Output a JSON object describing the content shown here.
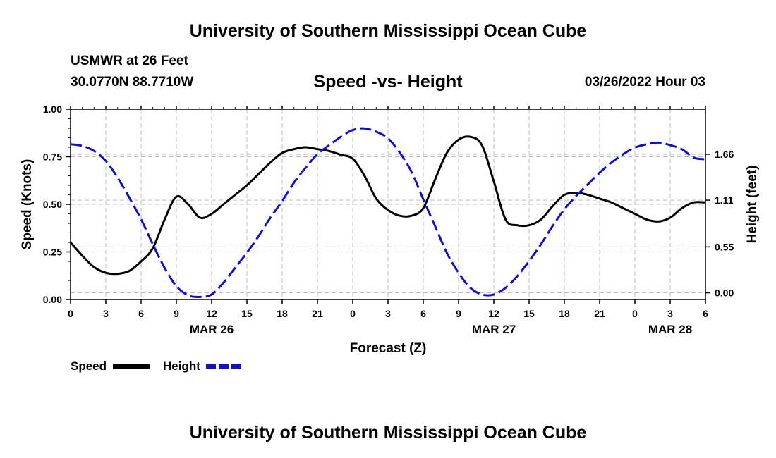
{
  "header": {
    "title": "University of Southern Mississippi Ocean Cube",
    "station": "USMWR at 26 Feet",
    "coords": "30.0770N  88.7710W",
    "datetime": "03/26/2022 Hour 03",
    "footer_title": "University of Southern Mississippi Ocean Cube"
  },
  "legend": {
    "speed_label": "Speed",
    "height_label": "Height"
  },
  "colors": {
    "speed": "#000000",
    "height": "#1010c8",
    "grid": "#bdbdbd"
  },
  "chart_data": {
    "type": "line",
    "title": "Speed -vs- Height",
    "xlabel": "Forecast (Z)",
    "ylabel": "Speed (Knots)",
    "y2label": "Height (feet)",
    "xlim": [
      0,
      54
    ],
    "ylim": [
      0,
      1
    ],
    "y2lim": [
      -0.08,
      2.2
    ],
    "x_ticks": [
      0,
      3,
      6,
      9,
      12,
      15,
      18,
      21,
      24,
      27,
      30,
      33,
      36,
      39,
      42,
      45,
      48,
      51,
      54
    ],
    "x_tick_labels": [
      "0",
      "3",
      "6",
      "9",
      "12",
      "15",
      "18",
      "21",
      "0",
      "3",
      "6",
      "9",
      "12",
      "15",
      "18",
      "21",
      "0",
      "3",
      "6"
    ],
    "date_labels": [
      {
        "x": 12,
        "label": "MAR 26"
      },
      {
        "x": 36,
        "label": "MAR 27"
      },
      {
        "x": 51,
        "label": "MAR 28"
      }
    ],
    "y_ticks": [
      0,
      0.25,
      0.5,
      0.75,
      1.0
    ],
    "y_tick_labels": [
      "0.00",
      "0.25",
      "0.50",
      "0.75",
      "1.00"
    ],
    "y2_ticks": [
      0,
      0.55,
      1.11,
      1.66
    ],
    "y2_tick_labels": [
      "0.00",
      "0.55",
      "1.11",
      "1.66"
    ],
    "series": [
      {
        "name": "Speed",
        "axis": "left",
        "style": "solid",
        "x": [
          0,
          1,
          2,
          3,
          4,
          5,
          6,
          7,
          8,
          9,
          10,
          11,
          12,
          13,
          14,
          15,
          16,
          17,
          18,
          19,
          20,
          21,
          22,
          23,
          24,
          25,
          26,
          27,
          28,
          29,
          30,
          31,
          32,
          33,
          34,
          35,
          36,
          37,
          38,
          39,
          40,
          41,
          42,
          43,
          44,
          45,
          46,
          47,
          48,
          49,
          50,
          51,
          52,
          53,
          54
        ],
        "values": [
          0.3,
          0.23,
          0.17,
          0.14,
          0.135,
          0.15,
          0.2,
          0.27,
          0.42,
          0.54,
          0.5,
          0.43,
          0.45,
          0.5,
          0.55,
          0.6,
          0.66,
          0.72,
          0.77,
          0.79,
          0.8,
          0.79,
          0.78,
          0.76,
          0.74,
          0.65,
          0.53,
          0.47,
          0.44,
          0.44,
          0.48,
          0.63,
          0.77,
          0.84,
          0.855,
          0.81,
          0.62,
          0.42,
          0.39,
          0.39,
          0.42,
          0.49,
          0.55,
          0.56,
          0.55,
          0.53,
          0.51,
          0.48,
          0.45,
          0.42,
          0.41,
          0.43,
          0.48,
          0.51,
          0.51
        ]
      },
      {
        "name": "Height",
        "axis": "right",
        "style": "dashed",
        "x": [
          0,
          1,
          2,
          3,
          4,
          5,
          6,
          7,
          8,
          9,
          10,
          11,
          12,
          13,
          14,
          15,
          16,
          17,
          18,
          19,
          20,
          21,
          22,
          23,
          24,
          25,
          26,
          27,
          28,
          29,
          30,
          31,
          32,
          33,
          34,
          35,
          36,
          37,
          38,
          39,
          40,
          41,
          42,
          43,
          44,
          45,
          46,
          47,
          48,
          49,
          50,
          51,
          52,
          53,
          54
        ],
        "values": [
          1.78,
          1.76,
          1.7,
          1.58,
          1.38,
          1.14,
          0.88,
          0.58,
          0.3,
          0.08,
          -0.03,
          -0.05,
          -0.02,
          0.12,
          0.3,
          0.48,
          0.68,
          0.9,
          1.1,
          1.32,
          1.5,
          1.66,
          1.77,
          1.87,
          1.95,
          1.97,
          1.93,
          1.85,
          1.68,
          1.45,
          1.12,
          0.8,
          0.48,
          0.24,
          0.06,
          -0.02,
          -0.02,
          0.06,
          0.2,
          0.38,
          0.58,
          0.8,
          1.0,
          1.16,
          1.3,
          1.44,
          1.56,
          1.66,
          1.74,
          1.78,
          1.8,
          1.77,
          1.72,
          1.62,
          1.6
        ]
      }
    ]
  }
}
